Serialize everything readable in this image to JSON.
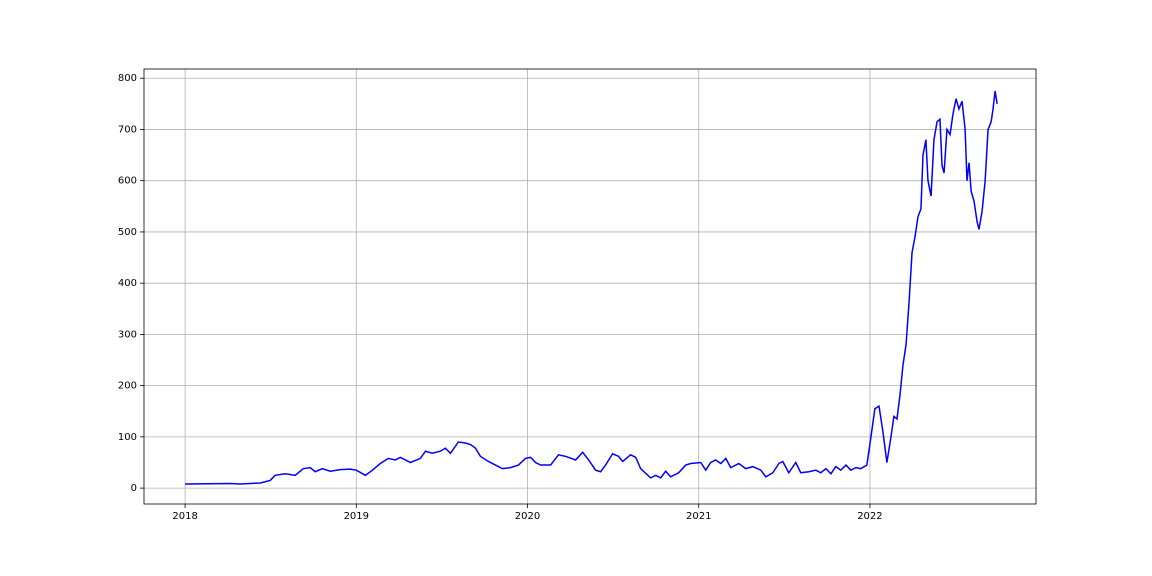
{
  "chart_data": {
    "type": "line",
    "x": [
      2018.0,
      2018.263,
      2018.322,
      2018.439,
      2018.497,
      2018.526,
      2018.585,
      2018.643,
      2018.69,
      2018.731,
      2018.76,
      2018.801,
      2018.848,
      2018.906,
      2018.965,
      2019.0,
      2019.053,
      2019.094,
      2019.14,
      2019.187,
      2019.228,
      2019.257,
      2019.287,
      2019.316,
      2019.374,
      2019.404,
      2019.444,
      2019.491,
      2019.52,
      2019.55,
      2019.596,
      2019.637,
      2019.667,
      2019.696,
      2019.725,
      2019.772,
      2019.813,
      2019.854,
      2019.901,
      2019.947,
      2019.988,
      2020.018,
      2020.047,
      2020.076,
      2020.105,
      2020.135,
      2020.181,
      2020.222,
      2020.281,
      2020.322,
      2020.357,
      2020.398,
      2020.427,
      2020.456,
      2020.497,
      2020.532,
      2020.556,
      2020.602,
      2020.632,
      2020.661,
      2020.719,
      2020.749,
      2020.778,
      2020.807,
      2020.836,
      2020.883,
      2020.924,
      2020.953,
      2021.012,
      2021.041,
      2021.07,
      2021.099,
      2021.129,
      2021.158,
      2021.187,
      2021.234,
      2021.275,
      2021.316,
      2021.363,
      2021.392,
      2021.433,
      2021.468,
      2021.491,
      2021.526,
      2021.567,
      2021.596,
      2021.643,
      2021.684,
      2021.713,
      2021.743,
      2021.772,
      2021.801,
      2021.83,
      2021.86,
      2021.889,
      2021.918,
      2021.947,
      2021.982,
      2022.006,
      2022.029,
      2022.053,
      2022.076,
      2022.099,
      2022.123,
      2022.14,
      2022.158,
      2022.175,
      2022.193,
      2022.211,
      2022.228,
      2022.246,
      2022.263,
      2022.281,
      2022.298,
      2022.31,
      2022.327,
      2022.339,
      2022.357,
      2022.374,
      2022.392,
      2022.409,
      2022.421,
      2022.433,
      2022.45,
      2022.468,
      2022.485,
      2022.503,
      2022.52,
      2022.538,
      2022.556,
      2022.567,
      2022.579,
      2022.591,
      2022.608,
      2022.626,
      2022.637,
      2022.655,
      2022.673,
      2022.69,
      2022.708,
      2022.719,
      2022.731,
      2022.743
    ],
    "series": [
      {
        "color": "#0000ff",
        "values": [
          8,
          9,
          8,
          10,
          15,
          25,
          28,
          25,
          38,
          40,
          32,
          38,
          33,
          36,
          37,
          35,
          25,
          35,
          48,
          58,
          55,
          60,
          55,
          50,
          58,
          72,
          68,
          72,
          78,
          68,
          90,
          88,
          85,
          78,
          62,
          52,
          45,
          38,
          40,
          45,
          58,
          60,
          50,
          45,
          45,
          45,
          65,
          62,
          55,
          70,
          55,
          35,
          32,
          45,
          67,
          62,
          52,
          65,
          60,
          38,
          20,
          25,
          20,
          33,
          22,
          30,
          45,
          48,
          50,
          35,
          50,
          55,
          48,
          58,
          40,
          48,
          38,
          42,
          35,
          22,
          30,
          48,
          52,
          30,
          50,
          30,
          32,
          35,
          30,
          38,
          28,
          42,
          35,
          45,
          35,
          40,
          38,
          45,
          100,
          155,
          160,
          110,
          50,
          100,
          140,
          135,
          180,
          240,
          280,
          360,
          460,
          490,
          530,
          545,
          650,
          680,
          600,
          570,
          680,
          715,
          720,
          630,
          615,
          700,
          690,
          730,
          760,
          740,
          755,
          700,
          600,
          635,
          580,
          560,
          520,
          505,
          540,
          600,
          700,
          715,
          740,
          775,
          750
        ]
      }
    ],
    "xlim": [
      2017.76,
      2022.97
    ],
    "xticks": [
      2018,
      2019,
      2020,
      2021,
      2022
    ],
    "ylim": [
      -31,
      818
    ],
    "yticks": [
      0,
      100,
      200,
      300,
      400,
      500,
      600,
      700,
      800
    ],
    "grid": true
  }
}
